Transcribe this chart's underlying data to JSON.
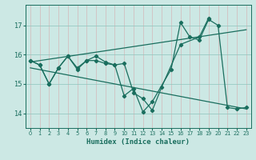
{
  "xlabel": "Humidex (Indice chaleur)",
  "bg_color": "#cce8e4",
  "grid_color": "#aad4ce",
  "line_color": "#1a6e5e",
  "xlim": [
    -0.5,
    23.5
  ],
  "ylim": [
    13.5,
    17.7
  ],
  "yticks": [
    14,
    15,
    16,
    17
  ],
  "xticks": [
    0,
    1,
    2,
    3,
    4,
    5,
    6,
    7,
    8,
    9,
    10,
    11,
    12,
    13,
    14,
    15,
    16,
    17,
    18,
    19,
    20,
    21,
    22,
    23
  ],
  "series1_x": [
    0,
    1,
    2,
    3,
    4,
    5,
    6,
    7,
    8,
    9,
    10,
    11,
    12,
    13,
    15,
    16,
    17,
    18,
    19,
    20,
    21,
    22,
    23
  ],
  "series1_y": [
    15.8,
    15.65,
    15.0,
    15.55,
    15.95,
    15.5,
    15.8,
    15.8,
    15.7,
    15.65,
    14.6,
    14.85,
    14.05,
    14.4,
    15.5,
    17.1,
    16.6,
    16.5,
    17.2,
    17.0,
    14.2,
    14.15,
    14.2
  ],
  "series2_x": [
    0,
    1,
    2,
    3,
    4,
    5,
    6,
    7,
    8,
    9,
    10,
    11,
    12,
    13,
    14,
    16,
    18,
    19
  ],
  "series2_y": [
    15.8,
    15.65,
    15.0,
    15.55,
    15.95,
    15.55,
    15.8,
    15.95,
    15.75,
    15.65,
    15.7,
    14.7,
    14.5,
    14.1,
    14.9,
    16.35,
    16.6,
    17.25
  ],
  "trend1_x": [
    0,
    23
  ],
  "trend1_y": [
    15.75,
    16.85
  ],
  "trend2_x": [
    0,
    23
  ],
  "trend2_y": [
    15.55,
    14.15
  ]
}
